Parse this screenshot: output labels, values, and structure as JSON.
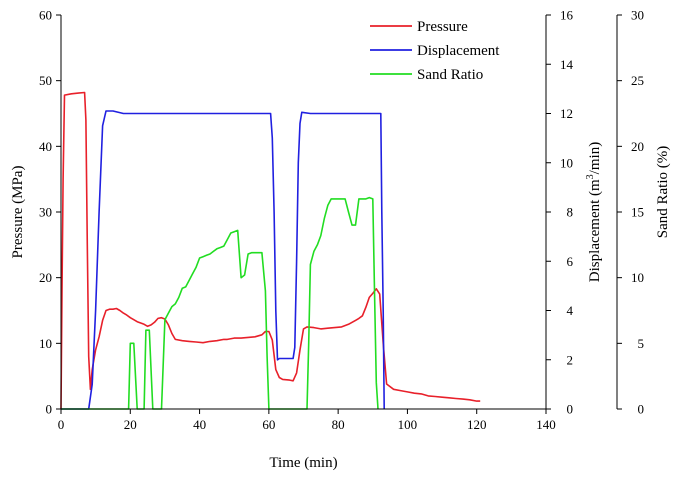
{
  "chart_data": {
    "type": "line",
    "xlabel": "Time (min)",
    "xlim": [
      0,
      140
    ],
    "xticks": [
      0,
      20,
      40,
      60,
      80,
      100,
      120,
      140
    ],
    "axes": {
      "pressure": {
        "label": "Pressure (MPa)",
        "lim": [
          0,
          60
        ],
        "ticks": [
          0,
          10,
          20,
          30,
          40,
          50,
          60
        ]
      },
      "displacement": {
        "label_main": "Displacement (m",
        "label_sup": "3",
        "label_end": "/min)",
        "lim": [
          0,
          16
        ],
        "ticks": [
          0,
          2,
          4,
          6,
          8,
          10,
          12,
          14,
          16
        ]
      },
      "sand_ratio": {
        "label": "Sand Ratio (%)",
        "lim": [
          0,
          30
        ],
        "ticks": [
          0,
          5,
          10,
          15,
          20,
          25,
          30
        ]
      }
    },
    "legend": {
      "placement": "top-right"
    },
    "series": [
      {
        "name": "Pressure",
        "color": "#e8202a",
        "axis": "pressure",
        "points": [
          [
            0,
            0
          ],
          [
            0.3,
            18
          ],
          [
            0.6,
            35
          ],
          [
            1,
            47.8
          ],
          [
            3,
            48
          ],
          [
            5,
            48.1
          ],
          [
            6.8,
            48.2
          ],
          [
            7.2,
            44
          ],
          [
            7.6,
            25
          ],
          [
            8,
            8
          ],
          [
            8.5,
            3
          ],
          [
            9,
            6
          ],
          [
            10,
            9
          ],
          [
            11,
            11
          ],
          [
            12,
            13.5
          ],
          [
            13,
            15
          ],
          [
            14,
            15.2
          ],
          [
            15,
            15.2
          ],
          [
            16,
            15.3
          ],
          [
            17,
            15
          ],
          [
            18,
            14.6
          ],
          [
            19,
            14.3
          ],
          [
            20,
            13.9
          ],
          [
            21,
            13.6
          ],
          [
            22,
            13.3
          ],
          [
            23,
            13.1
          ],
          [
            24,
            12.9
          ],
          [
            25,
            12.6
          ],
          [
            26,
            12.8
          ],
          [
            27,
            13.2
          ],
          [
            28,
            13.8
          ],
          [
            29,
            13.9
          ],
          [
            30,
            13.7
          ],
          [
            31,
            12.8
          ],
          [
            32,
            11.5
          ],
          [
            33,
            10.6
          ],
          [
            35,
            10.4
          ],
          [
            37,
            10.3
          ],
          [
            39,
            10.2
          ],
          [
            41,
            10.1
          ],
          [
            43,
            10.3
          ],
          [
            45,
            10.4
          ],
          [
            47,
            10.6
          ],
          [
            48,
            10.6
          ],
          [
            50,
            10.8
          ],
          [
            52,
            10.8
          ],
          [
            54,
            10.9
          ],
          [
            56,
            11
          ],
          [
            58,
            11.3
          ],
          [
            59,
            11.8
          ],
          [
            60,
            11.8
          ],
          [
            61,
            10.5
          ],
          [
            62,
            6
          ],
          [
            63,
            4.8
          ],
          [
            64,
            4.5
          ],
          [
            66,
            4.4
          ],
          [
            67,
            4.3
          ],
          [
            68,
            5.5
          ],
          [
            69,
            9
          ],
          [
            70,
            12.2
          ],
          [
            71,
            12.5
          ],
          [
            73,
            12.4
          ],
          [
            75,
            12.2
          ],
          [
            77,
            12.3
          ],
          [
            79,
            12.4
          ],
          [
            81,
            12.5
          ],
          [
            83,
            12.9
          ],
          [
            85,
            13.5
          ],
          [
            86,
            13.8
          ],
          [
            87,
            14.2
          ],
          [
            88,
            15.5
          ],
          [
            89,
            17
          ],
          [
            90,
            17.6
          ],
          [
            91,
            18.3
          ],
          [
            92,
            17.5
          ],
          [
            93,
            10
          ],
          [
            94,
            3.8
          ],
          [
            96,
            3
          ],
          [
            98,
            2.8
          ],
          [
            100,
            2.6
          ],
          [
            102,
            2.4
          ],
          [
            104,
            2.3
          ],
          [
            106,
            2
          ],
          [
            108,
            1.9
          ],
          [
            110,
            1.8
          ],
          [
            112,
            1.7
          ],
          [
            114,
            1.6
          ],
          [
            116,
            1.5
          ],
          [
            118,
            1.4
          ],
          [
            120,
            1.2
          ],
          [
            121,
            1.2
          ]
        ]
      },
      {
        "name": "Displacement",
        "color": "#2020e0",
        "axis": "displacement",
        "points": [
          [
            0,
            0
          ],
          [
            8,
            0
          ],
          [
            9,
            1
          ],
          [
            10,
            4
          ],
          [
            11,
            8
          ],
          [
            12,
            11.5
          ],
          [
            13,
            12.1
          ],
          [
            15,
            12.1
          ],
          [
            18,
            12
          ],
          [
            22,
            12
          ],
          [
            26,
            12
          ],
          [
            30,
            12
          ],
          [
            35,
            12
          ],
          [
            40,
            12
          ],
          [
            45,
            12
          ],
          [
            50,
            12
          ],
          [
            55,
            12
          ],
          [
            58,
            12
          ],
          [
            60.5,
            12
          ],
          [
            61,
            11
          ],
          [
            61.5,
            8
          ],
          [
            62,
            4
          ],
          [
            62.5,
            2
          ],
          [
            63,
            2.05
          ],
          [
            65,
            2.05
          ],
          [
            67,
            2.05
          ],
          [
            67.5,
            2.5
          ],
          [
            68,
            6
          ],
          [
            68.5,
            10
          ],
          [
            69,
            11.6
          ],
          [
            69.5,
            12.05
          ],
          [
            72,
            12
          ],
          [
            76,
            12
          ],
          [
            80,
            12
          ],
          [
            84,
            12
          ],
          [
            88,
            12
          ],
          [
            91,
            12
          ],
          [
            92.3,
            12
          ],
          [
            92.6,
            8
          ],
          [
            93,
            4
          ],
          [
            93.3,
            0
          ]
        ]
      },
      {
        "name": "Sand Ratio",
        "color": "#22dd22",
        "axis": "sand_ratio",
        "points": [
          [
            0,
            0
          ],
          [
            19.5,
            0
          ],
          [
            20,
            5
          ],
          [
            21,
            5
          ],
          [
            22,
            0
          ],
          [
            24,
            0
          ],
          [
            24.5,
            6
          ],
          [
            25.5,
            6
          ],
          [
            26.5,
            0
          ],
          [
            29,
            0
          ],
          [
            30,
            6.8
          ],
          [
            31,
            7.3
          ],
          [
            32,
            7.8
          ],
          [
            33,
            8
          ],
          [
            34,
            8.5
          ],
          [
            35,
            9.2
          ],
          [
            36,
            9.3
          ],
          [
            37,
            9.8
          ],
          [
            38,
            10.3
          ],
          [
            39,
            10.8
          ],
          [
            40,
            11.5
          ],
          [
            41,
            11.6
          ],
          [
            42,
            11.7
          ],
          [
            43,
            11.8
          ],
          [
            44,
            12
          ],
          [
            45,
            12.2
          ],
          [
            46,
            12.3
          ],
          [
            47,
            12.4
          ],
          [
            48,
            12.9
          ],
          [
            49,
            13.4
          ],
          [
            50,
            13.5
          ],
          [
            51,
            13.6
          ],
          [
            52,
            10
          ],
          [
            53,
            10.2
          ],
          [
            54,
            11.8
          ],
          [
            55,
            11.9
          ],
          [
            57,
            11.9
          ],
          [
            58,
            11.9
          ],
          [
            59,
            9
          ],
          [
            59.5,
            4
          ],
          [
            60,
            0
          ],
          [
            71,
            0
          ],
          [
            71.5,
            5
          ],
          [
            72,
            11
          ],
          [
            73,
            12
          ],
          [
            74,
            12.5
          ],
          [
            75,
            13.2
          ],
          [
            76,
            14.5
          ],
          [
            77,
            15.5
          ],
          [
            78,
            16
          ],
          [
            80,
            16
          ],
          [
            82,
            16
          ],
          [
            83,
            15
          ],
          [
            84,
            14
          ],
          [
            85,
            14
          ],
          [
            86,
            16
          ],
          [
            88,
            16
          ],
          [
            89,
            16.1
          ],
          [
            90,
            16
          ],
          [
            90.5,
            9
          ],
          [
            91,
            2
          ],
          [
            91.5,
            0
          ]
        ]
      }
    ]
  }
}
